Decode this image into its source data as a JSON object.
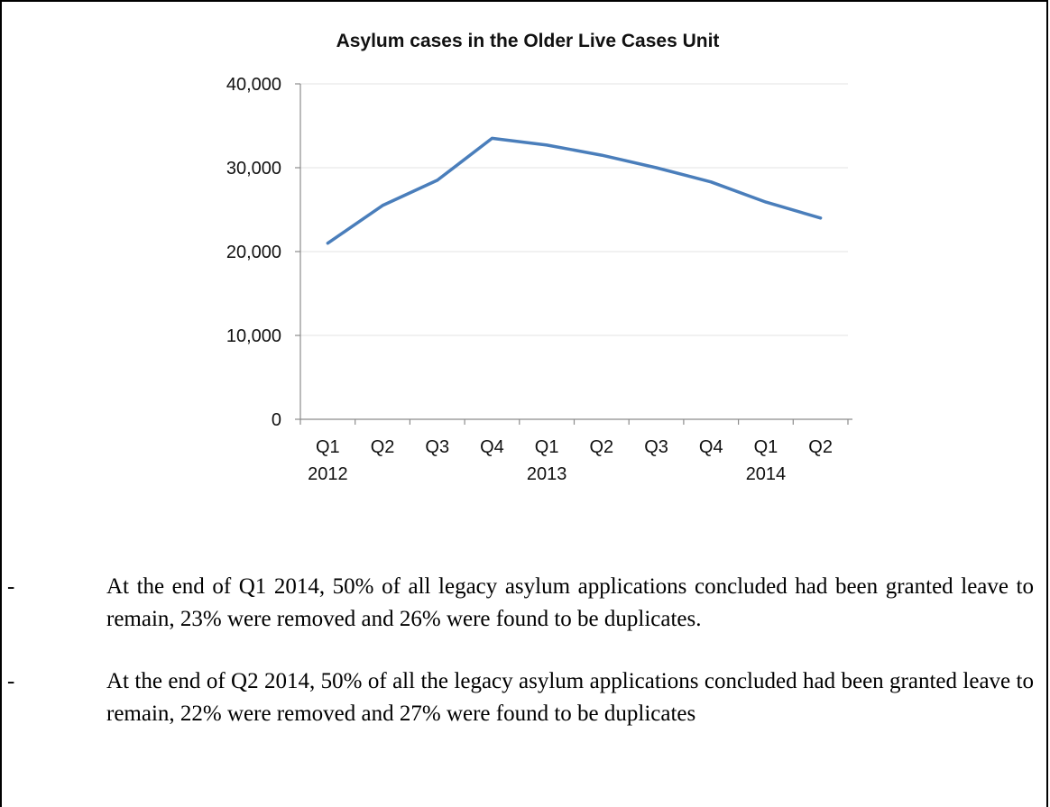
{
  "chart_data": {
    "type": "line",
    "title": "Asylum cases in the Older Live Cases Unit",
    "xlabel": "",
    "ylabel": "",
    "ylim": [
      0,
      40000
    ],
    "yticks": [
      "0",
      "10,000",
      "20,000",
      "30,000",
      "40,000"
    ],
    "categories": [
      "Q1 2012",
      "Q2 2012",
      "Q3 2012",
      "Q4 2012",
      "Q1 2013",
      "Q2 2013",
      "Q3 2013",
      "Q4 2013",
      "Q1 2014",
      "Q2 2014"
    ],
    "quarter_labels": [
      "Q1",
      "Q2",
      "Q3",
      "Q4",
      "Q1",
      "Q2",
      "Q3",
      "Q4",
      "Q1",
      "Q2"
    ],
    "year_labels": [
      "2012",
      "2013",
      "2014"
    ],
    "series": [
      {
        "values": [
          21000,
          25500,
          28500,
          33500,
          32700,
          31500,
          30000,
          28300,
          25900,
          24000
        ]
      }
    ],
    "line_color": "#4a7ebb",
    "grid": true,
    "legend": "none"
  },
  "bullets": [
    {
      "marker": "-",
      "text": "At the end of Q1 2014, 50% of all legacy asylum applications concluded had been granted leave to remain, 23% were removed and 26% were found to be duplicates."
    },
    {
      "marker": "-",
      "text": "At the end of Q2 2014, 50% of all the legacy asylum applications concluded had been granted leave to remain, 22% were removed and 27% were found to be duplicates"
    }
  ]
}
